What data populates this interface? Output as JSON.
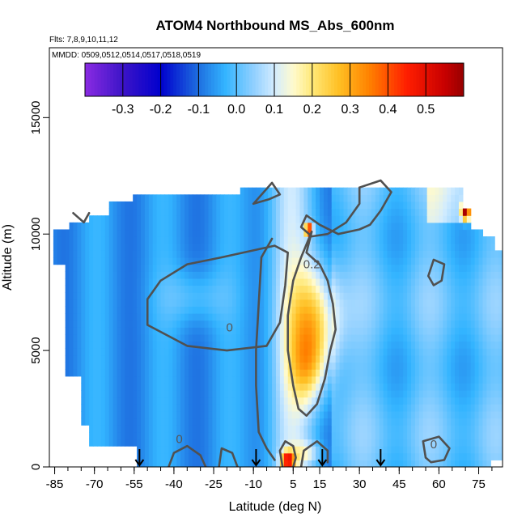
{
  "chart_data": {
    "type": "heatmap",
    "title": "ATOM4 Northbound MS_Abs_600nm",
    "flights_note": "Flts: 7,8,9,10,11,12",
    "dates_note": "MMDD: 0509,0512,0514,0517,0518,0519",
    "xlabel": "Latitude (deg N)",
    "ylabel": "Altitude (m)",
    "xlim": [
      -87,
      84
    ],
    "ylim": [
      0,
      18000
    ],
    "x_ticks": [
      -85,
      -70,
      -55,
      -40,
      -25,
      -10,
      5,
      15,
      30,
      45,
      60,
      75
    ],
    "x_minor_step": 5,
    "y_ticks": [
      0,
      5000,
      10000,
      15000
    ],
    "colorbar": {
      "range": [
        -0.4,
        0.6
      ],
      "ticks": [
        -0.3,
        -0.2,
        -0.1,
        0.0,
        0.1,
        0.2,
        0.3,
        0.4,
        0.5
      ],
      "tick_labels": [
        "-0.3",
        "-0.2",
        "-0.1",
        "0.0",
        "0.1",
        "0.2",
        "0.3",
        "0.4",
        "0.5"
      ],
      "colors": [
        "#8a2be2",
        "#0000cd",
        "#1e6fe0",
        "#33b4ff",
        "#bfe6ff",
        "#fff6b0",
        "#ffc024",
        "#ff6a00",
        "#ff0000",
        "#990000"
      ]
    },
    "contour_labels": [
      {
        "text": "0.2",
        "lat": 12,
        "alt": 8700
      },
      {
        "text": "0",
        "lat": -19,
        "alt": 6000
      },
      {
        "text": "0",
        "lat": -38,
        "alt": 1200
      },
      {
        "text": "0",
        "lat": 58,
        "alt": 970
      }
    ],
    "profile_markers_lat": [
      -53,
      -9,
      16,
      38
    ]
  }
}
